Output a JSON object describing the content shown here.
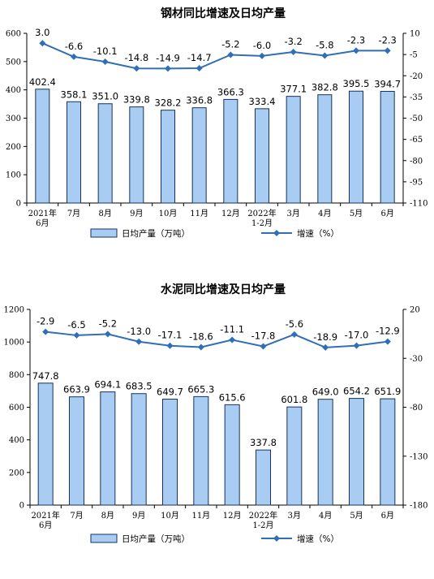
{
  "chart_data": [
    {
      "type": "bar",
      "title": "钢材同比增速及日均产量",
      "categories": [
        "2021年\n6月",
        "7月",
        "8月",
        "9月",
        "10月",
        "11月",
        "12月",
        "2022年\n1-2月",
        "3月",
        "4月",
        "5月",
        "6月"
      ],
      "series": [
        {
          "name": "日均产量（万吨）",
          "type": "bar",
          "axis": "left",
          "values": [
            402.4,
            358.1,
            351.0,
            339.8,
            328.2,
            336.8,
            366.3,
            333.4,
            377.1,
            382.8,
            395.5,
            394.7
          ]
        },
        {
          "name": "增速（%）",
          "type": "line",
          "axis": "right",
          "values": [
            3.0,
            -6.6,
            -10.1,
            -14.8,
            -14.9,
            -14.7,
            -5.2,
            -6.0,
            -3.2,
            -5.8,
            -2.3,
            -2.3
          ]
        }
      ],
      "yleft": {
        "min": 0,
        "max": 600,
        "step": 100
      },
      "yright": {
        "min": -110,
        "max": 10,
        "step": 15
      },
      "grid": false,
      "legend": "bottom",
      "colors": {
        "bar_fill": "#a9cdf2",
        "bar_stroke": "#16325c",
        "line": "#2e6fb7"
      }
    },
    {
      "type": "bar",
      "title": "水泥同比增速及日均产量",
      "categories": [
        "2021年\n6月",
        "7月",
        "8月",
        "9月",
        "10月",
        "11月",
        "12月",
        "2022年\n1-2月",
        "3月",
        "4月",
        "5月",
        "6月"
      ],
      "series": [
        {
          "name": "日均产量（万吨）",
          "type": "bar",
          "axis": "left",
          "values": [
            747.8,
            663.9,
            694.1,
            683.5,
            649.7,
            665.3,
            615.6,
            337.8,
            601.8,
            649.0,
            654.2,
            651.9
          ]
        },
        {
          "name": "增速（%）",
          "type": "line",
          "axis": "right",
          "values": [
            -2.9,
            -6.5,
            -5.2,
            -13.0,
            -17.1,
            -18.6,
            -11.1,
            -17.8,
            -5.6,
            -18.9,
            -17.0,
            -12.9
          ]
        }
      ],
      "yleft": {
        "min": 0,
        "max": 1200,
        "step": 200
      },
      "yright": {
        "min": -180,
        "max": 20,
        "step": 50
      },
      "grid": false,
      "legend": "bottom",
      "colors": {
        "bar_fill": "#a9cdf2",
        "bar_stroke": "#16325c",
        "line": "#2e6fb7"
      }
    }
  ]
}
